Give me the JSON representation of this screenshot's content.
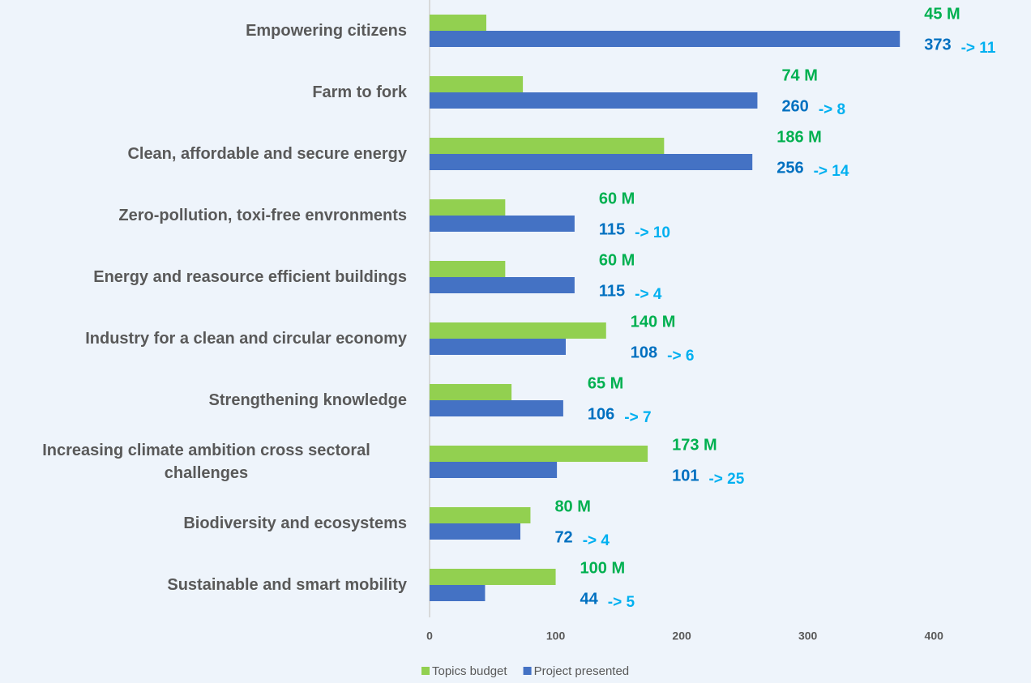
{
  "chart_data": {
    "type": "bar",
    "orientation": "horizontal",
    "categories": [
      "Empowering citizens",
      "Farm to fork",
      "Clean, affordable and secure energy",
      "Zero-pollution, toxi-free envronments",
      "Energy and reasource efficient buildings",
      "Industry for a clean and circular economy",
      "Strengthening knowledge",
      "Increasing climate ambition cross sectoral challenges",
      "Biodiversity and ecosystems",
      "Sustainable and smart mobility"
    ],
    "series": [
      {
        "name": "Topics budget",
        "color": "#92d050",
        "label_color": "#00b050",
        "values": [
          45,
          74,
          186,
          60,
          60,
          140,
          65,
          173,
          80,
          100
        ],
        "value_labels": [
          "45 M",
          "74 M",
          "186 M",
          "60 M",
          "60 M",
          "140 M",
          "65 M",
          "173 M",
          "80 M",
          "100 M"
        ]
      },
      {
        "name": "Project presented",
        "color": "#4472c4",
        "label_color": "#0070c0",
        "values": [
          373,
          260,
          256,
          115,
          115,
          108,
          106,
          101,
          72,
          44
        ]
      }
    ],
    "annotations": [
      "-> 11",
      "-> 8",
      "-> 14",
      "-> 10",
      "-> 4",
      "-> 6",
      "-> 7",
      "-> 25",
      "-> 4",
      "-> 5"
    ],
    "annotation_color": "#00b0f0",
    "xlim": [
      0,
      450
    ],
    "xticks": [
      0,
      100,
      200,
      300,
      400
    ],
    "grid": false,
    "legend": "bottom"
  }
}
